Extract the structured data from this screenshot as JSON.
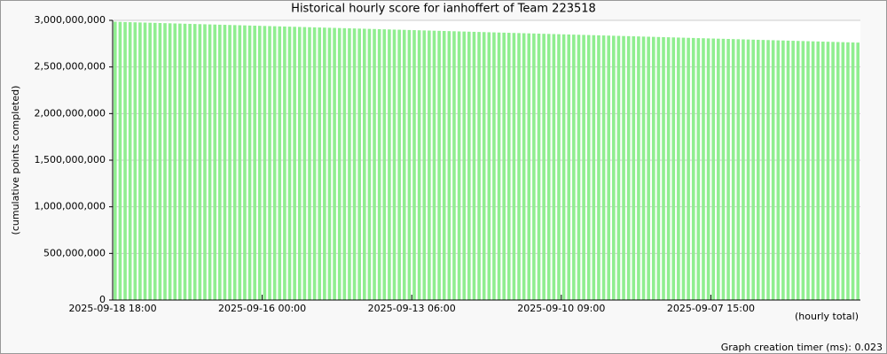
{
  "chart_data": {
    "type": "bar",
    "title": "Historical hourly score for ianhoffert of Team 223518",
    "y_label": "(cumulative points completed)",
    "x_label": "(hourly total)",
    "footer": "Graph creation timer (ms): 0.023",
    "color": "#90ee90",
    "grid": true,
    "ylim": [
      0,
      3000000000
    ],
    "yticks": [
      0,
      {
        "value": 500000000,
        "label": "500,000,000"
      },
      {
        "value": 1000000000,
        "label": "1,000,000,000"
      },
      {
        "value": 1500000000,
        "label": "1,500,000,000"
      },
      {
        "value": 2000000000,
        "label": "2,000,000,000"
      },
      {
        "value": 2500000000,
        "label": "2,500,000,000"
      },
      {
        "value": 3000000000,
        "label": "3,000,000,000"
      }
    ],
    "categories": [
      "2025-09-18 18:00",
      null,
      null,
      null,
      null,
      null,
      null,
      null,
      null,
      null,
      null,
      null,
      null,
      null,
      null,
      null,
      null,
      null,
      null,
      null,
      null,
      null,
      null,
      null,
      null,
      null,
      null,
      null,
      null,
      null,
      "2025-09-16 00:00",
      null,
      null,
      null,
      null,
      null,
      null,
      null,
      null,
      null,
      null,
      null,
      null,
      null,
      null,
      null,
      null,
      null,
      null,
      null,
      null,
      null,
      null,
      null,
      null,
      null,
      null,
      null,
      null,
      null,
      "2025-09-13 06:00",
      null,
      null,
      null,
      null,
      null,
      null,
      null,
      null,
      null,
      null,
      null,
      null,
      null,
      null,
      null,
      null,
      null,
      null,
      null,
      null,
      null,
      null,
      null,
      null,
      null,
      null,
      null,
      null,
      null,
      "2025-09-10 09:00",
      null,
      null,
      null,
      null,
      null,
      null,
      null,
      null,
      null,
      null,
      null,
      null,
      null,
      null,
      null,
      null,
      null,
      null,
      null,
      null,
      null,
      null,
      null,
      null,
      null,
      null,
      null,
      null,
      null,
      "2025-09-07 15:00",
      null,
      null,
      null,
      null,
      null,
      null,
      null,
      null,
      null,
      null,
      null,
      null,
      null,
      null,
      null,
      null,
      null,
      null,
      null,
      null,
      null,
      null,
      null,
      null,
      null,
      null,
      null,
      null,
      null
    ],
    "values": [
      2985000000,
      2983500000,
      2982000000,
      2980500000,
      2979000000,
      2977500000,
      2976000000,
      2974500000,
      2973000000,
      2971500000,
      2970000000,
      2968500000,
      2967000000,
      2965500000,
      2964000000,
      2962500000,
      2961000000,
      2959500000,
      2958000000,
      2956500000,
      2955000000,
      2953500000,
      2952000000,
      2950500000,
      2949000000,
      2947500000,
      2946000000,
      2944500000,
      2943000000,
      2941500000,
      2940000000,
      2938500000,
      2937000000,
      2935500000,
      2934000000,
      2932500000,
      2931000000,
      2929500000,
      2928000000,
      2926500000,
      2925000000,
      2923500000,
      2922000000,
      2920500000,
      2919000000,
      2917500000,
      2916000000,
      2914500000,
      2913000000,
      2911500000,
      2910000000,
      2908500000,
      2907000000,
      2905500000,
      2904000000,
      2902500000,
      2901000000,
      2899500000,
      2898000000,
      2896500000,
      2895000000,
      2893500000,
      2892000000,
      2890500000,
      2889000000,
      2887500000,
      2886000000,
      2884500000,
      2883000000,
      2881500000,
      2880000000,
      2878500000,
      2877000000,
      2875500000,
      2874000000,
      2872500000,
      2871000000,
      2869500000,
      2868000000,
      2866500000,
      2865000000,
      2863500000,
      2862000000,
      2860500000,
      2859000000,
      2857500000,
      2856000000,
      2854500000,
      2853000000,
      2851500000,
      2850000000,
      2848500000,
      2847000000,
      2845500000,
      2844000000,
      2842500000,
      2841000000,
      2839500000,
      2838000000,
      2836500000,
      2835000000,
      2833500000,
      2832000000,
      2830500000,
      2829000000,
      2827500000,
      2826000000,
      2824500000,
      2823000000,
      2821500000,
      2820000000,
      2818500000,
      2817000000,
      2815500000,
      2814000000,
      2812500000,
      2811000000,
      2809500000,
      2808000000,
      2806500000,
      2805000000,
      2803500000,
      2802000000,
      2800500000,
      2799000000,
      2797500000,
      2796000000,
      2794500000,
      2793000000,
      2791500000,
      2790000000,
      2788500000,
      2787000000,
      2785500000,
      2784000000,
      2782500000,
      2781000000,
      2779500000,
      2778000000,
      2776500000,
      2775000000,
      2773500000,
      2772000000,
      2770500000,
      2769000000,
      2767500000,
      2766000000,
      2764500000,
      2763000000,
      2761500000
    ]
  }
}
